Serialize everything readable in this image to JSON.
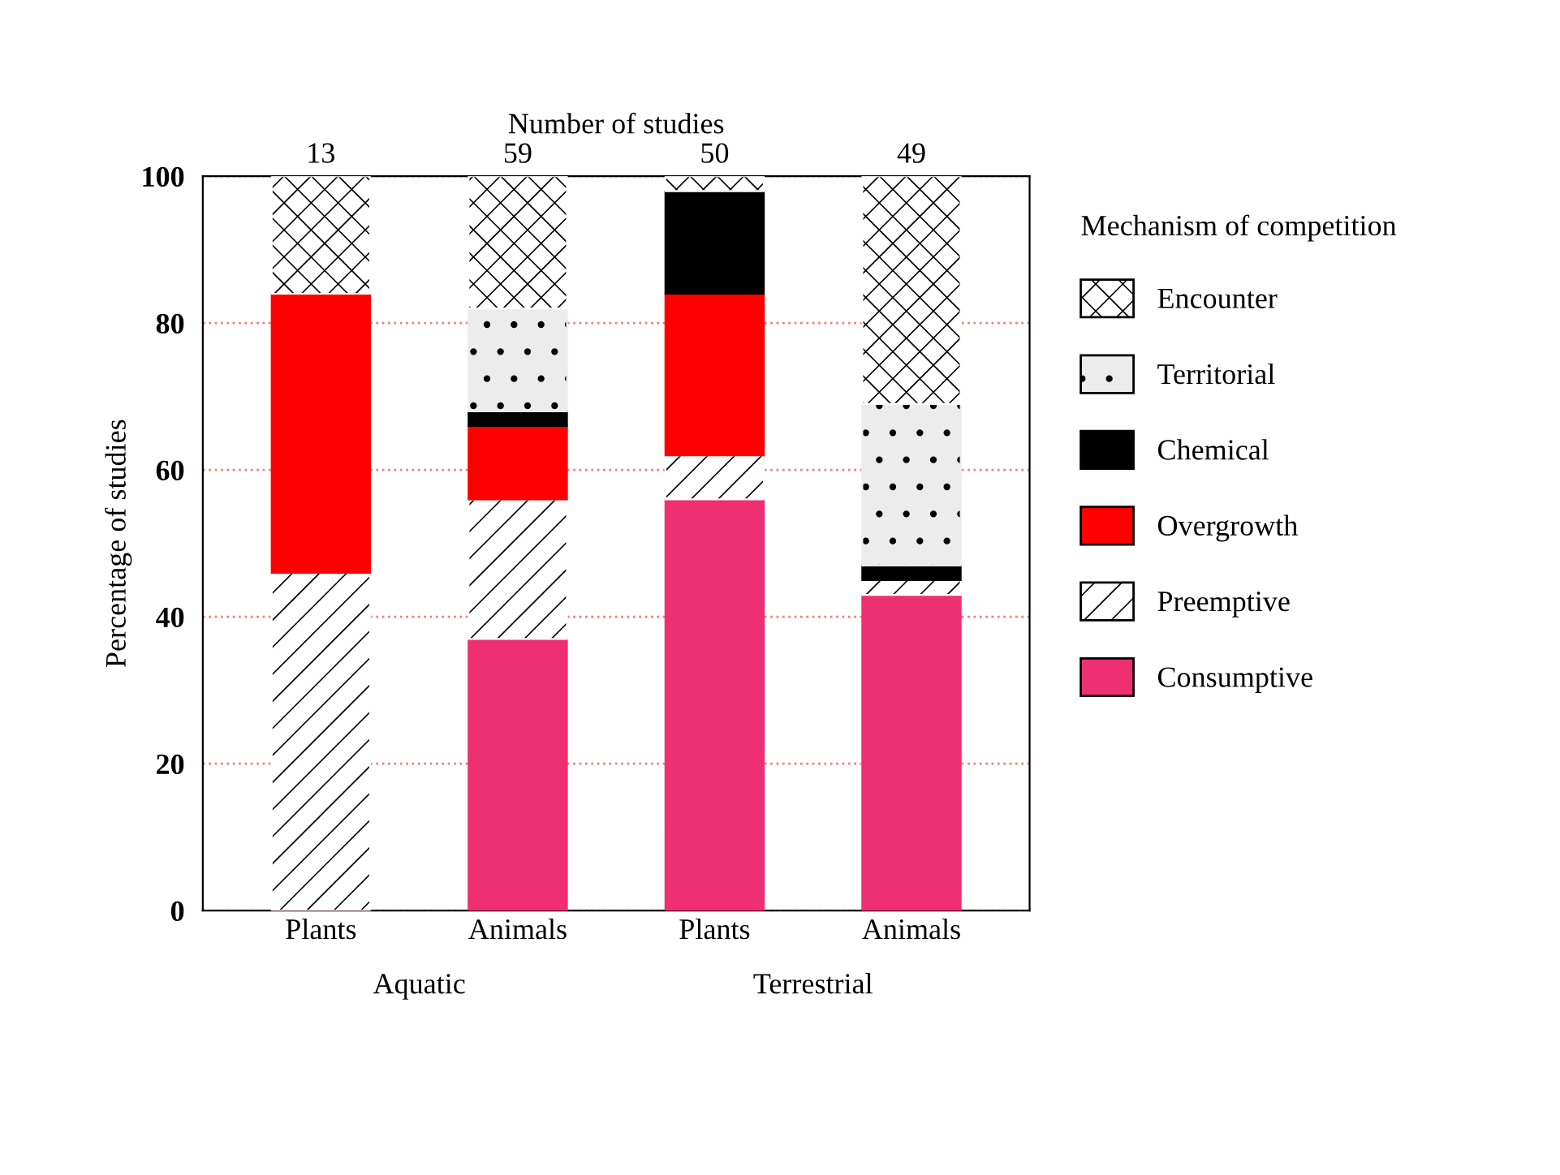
{
  "chart_data": {
    "type": "bar",
    "stacked": true,
    "categories": [
      "Plants",
      "Animals",
      "Plants",
      "Animals"
    ],
    "ylabel": "Percentage of studies",
    "legend_title": "Mechanism of competition",
    "ylim": [
      0,
      100
    ],
    "yticks": [
      0,
      20,
      40,
      60,
      80,
      100
    ],
    "grid": "y",
    "legend": "right",
    "annotations": [
      "Number of studies",
      "13",
      "59",
      "50",
      "49",
      "Aquatic",
      "Terrestrial"
    ],
    "series": [
      {
        "name": "Consumptive",
        "color": "#ee2f72",
        "values": [
          0,
          37,
          56,
          43
        ]
      },
      {
        "name": "Preemptive",
        "color": "#ffffff",
        "values": [
          46,
          19,
          6,
          2
        ]
      },
      {
        "name": "Overgrowth",
        "color": "#ff0000",
        "values": [
          38,
          10,
          22,
          0
        ]
      },
      {
        "name": "Chemical",
        "color": "#000000",
        "values": [
          0,
          2,
          14,
          2
        ]
      },
      {
        "name": "Territorial",
        "color": "#ececec",
        "values": [
          0,
          14,
          0,
          22
        ]
      },
      {
        "name": "Encounter",
        "color": "#ffffff",
        "values": [
          16,
          18,
          2,
          31
        ]
      }
    ]
  }
}
